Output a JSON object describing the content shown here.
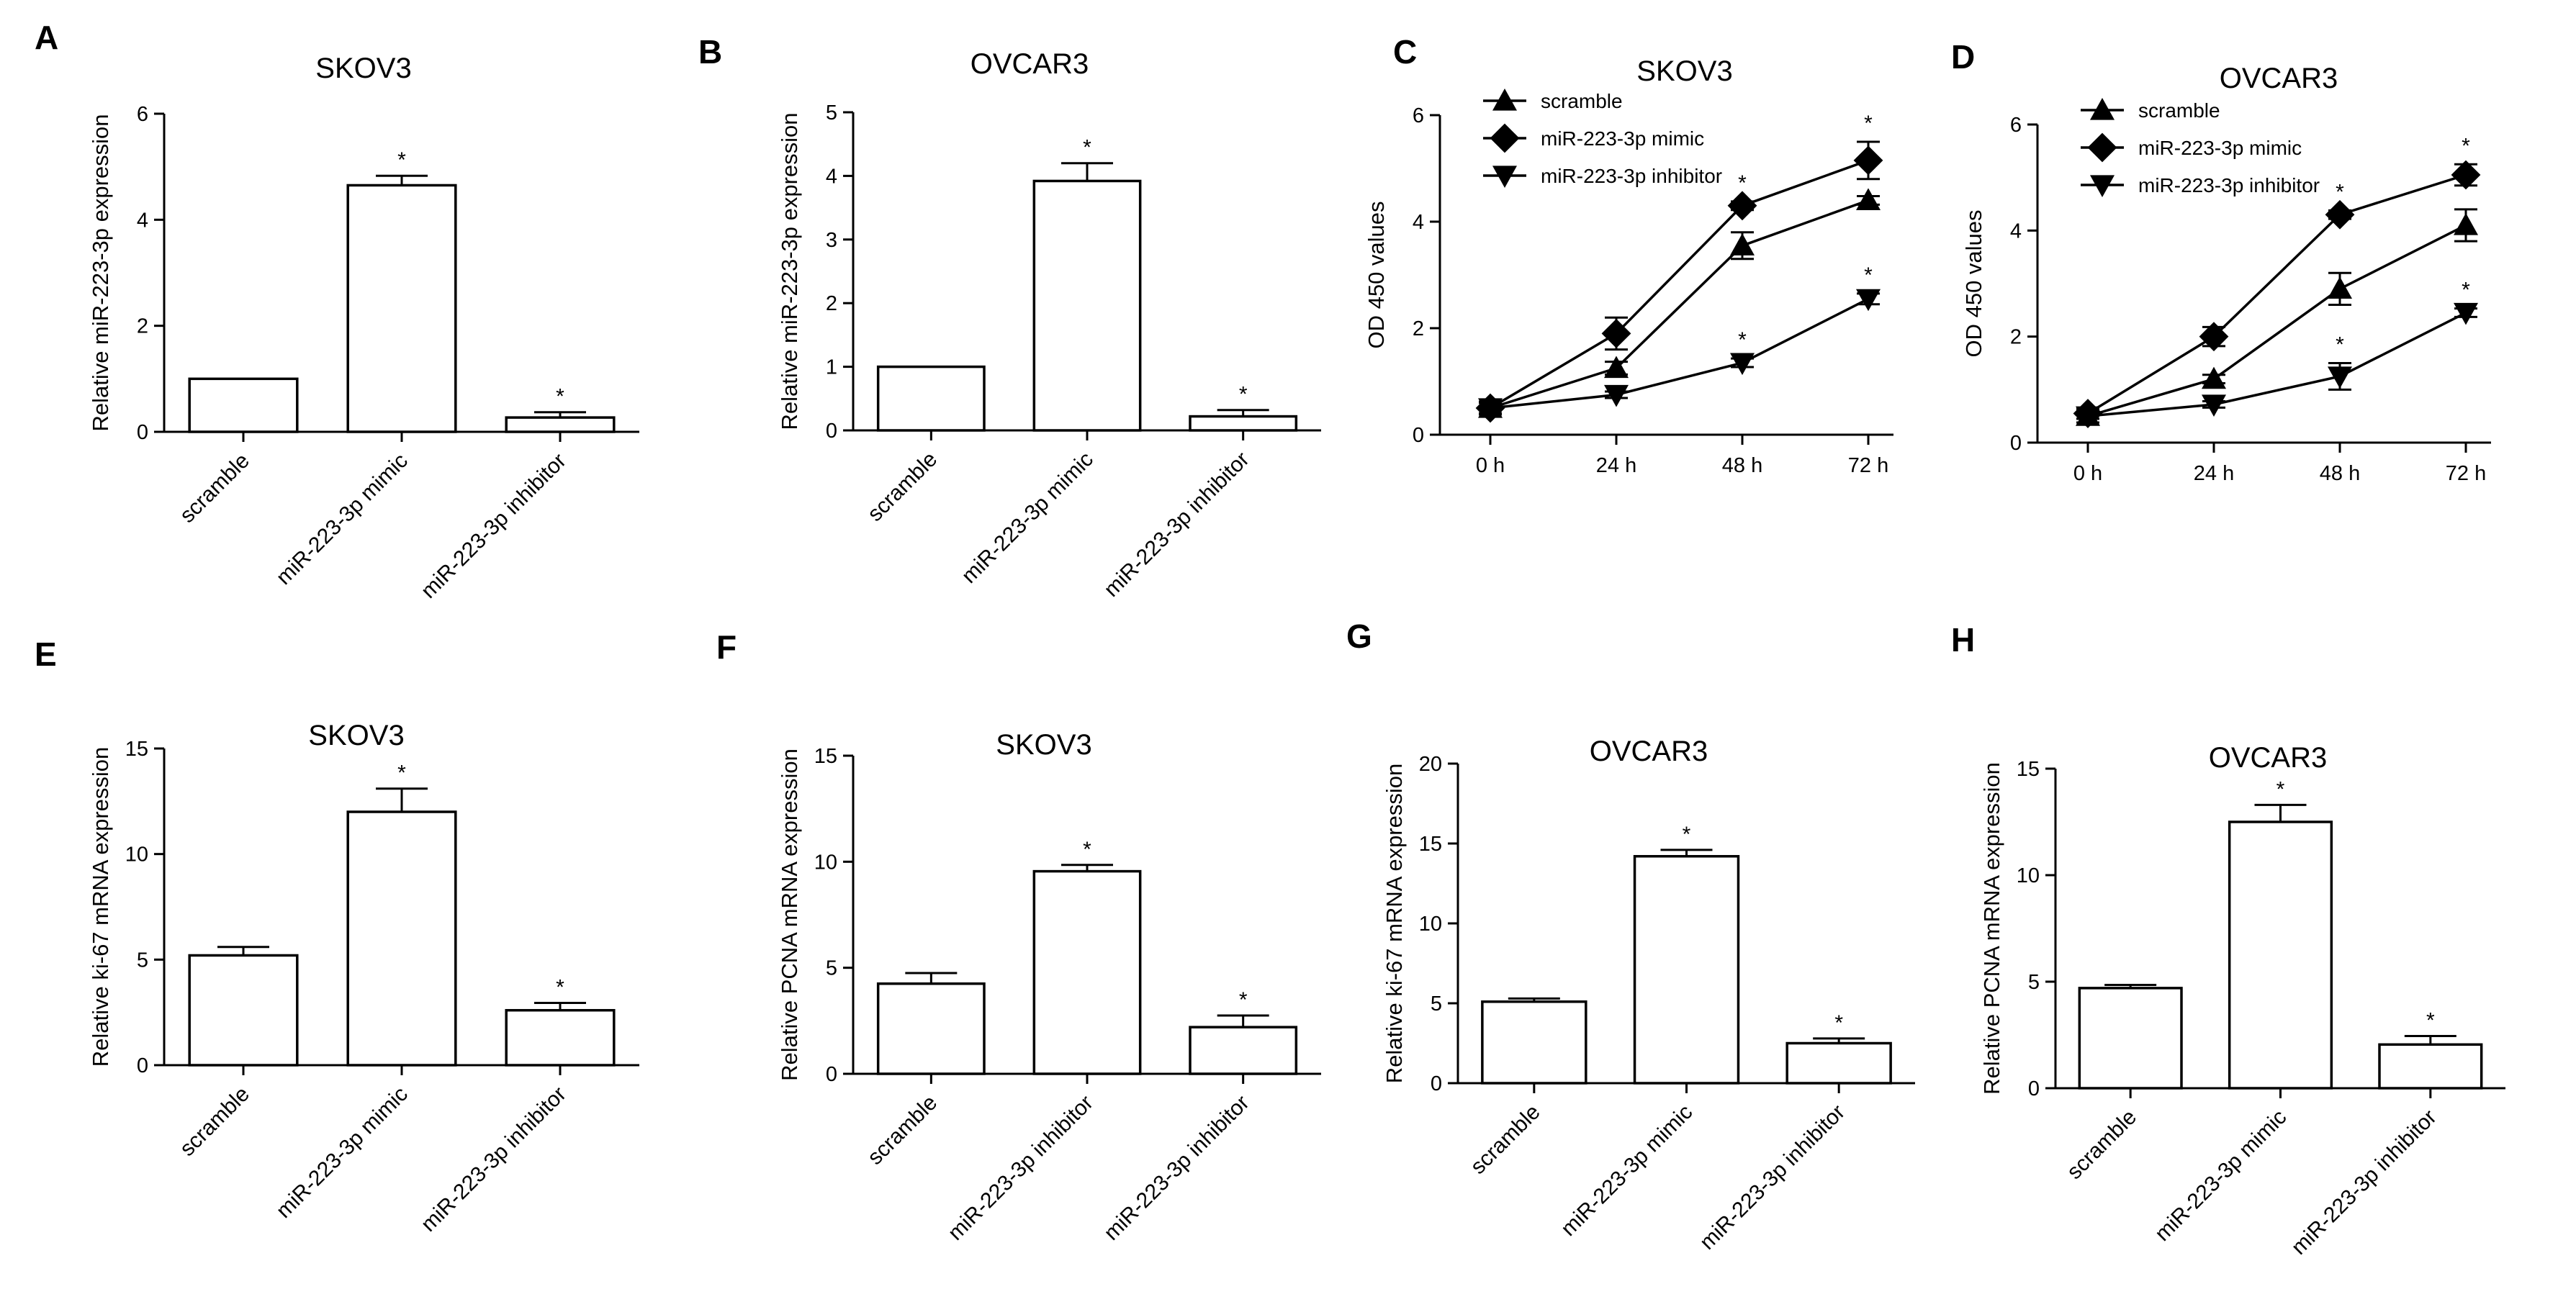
{
  "chart_data": [
    {
      "panel": "A",
      "type": "bar",
      "title": "SKOV3",
      "ylabel": "Relative miR-223-3p expression",
      "ylim": [
        0,
        6
      ],
      "yticks": [
        0,
        2,
        4,
        6
      ],
      "categories": [
        "scramble",
        "miR-223-3p mimic",
        "miR-223-3p inhibitor"
      ],
      "values": [
        1.0,
        4.65,
        0.27
      ],
      "errors": [
        0.0,
        0.18,
        0.1
      ],
      "significant": [
        false,
        true,
        true
      ],
      "star": "*"
    },
    {
      "panel": "B",
      "type": "bar",
      "title": "OVCAR3",
      "ylabel": "Relative miR-223-3p expression",
      "ylim": [
        0,
        5
      ],
      "yticks": [
        0,
        1,
        2,
        3,
        4,
        5
      ],
      "categories": [
        "scramble",
        "miR-223-3p mimic",
        "miR-223-3p inhibitor"
      ],
      "values": [
        1.0,
        3.92,
        0.22
      ],
      "errors": [
        0.0,
        0.28,
        0.1
      ],
      "significant": [
        false,
        true,
        true
      ],
      "star": "*"
    },
    {
      "panel": "C",
      "type": "line",
      "title": "SKOV3",
      "ylabel": "OD 450 values",
      "ylim": [
        0,
        6
      ],
      "yticks": [
        0,
        2,
        4,
        6
      ],
      "categories": [
        "0 h",
        "24 h",
        "48 h",
        "72 h"
      ],
      "series": [
        {
          "name": "scramble",
          "marker": "triangle-up",
          "values": [
            0.5,
            1.25,
            3.55,
            4.4
          ],
          "errors": [
            0.1,
            0.12,
            0.25,
            0.08
          ],
          "significant": [
            false,
            false,
            false,
            false
          ]
        },
        {
          "name": "miR-223-3p mimic",
          "marker": "diamond",
          "values": [
            0.5,
            1.9,
            4.3,
            5.15
          ],
          "errors": [
            0.12,
            0.3,
            0.08,
            0.35
          ],
          "significant": [
            false,
            false,
            true,
            true
          ]
        },
        {
          "name": "miR-223-3p inhibitor",
          "marker": "triangle-down",
          "values": [
            0.5,
            0.75,
            1.35,
            2.55
          ],
          "errors": [
            0.05,
            0.06,
            0.08,
            0.1
          ],
          "significant": [
            false,
            false,
            true,
            true
          ]
        }
      ],
      "star": "*"
    },
    {
      "panel": "D",
      "type": "line",
      "title": "OVCAR3",
      "ylabel": "OD 450 values",
      "ylim": [
        0,
        6
      ],
      "yticks": [
        0,
        2,
        4,
        6
      ],
      "categories": [
        "0 h",
        "24 h",
        "48 h",
        "72 h"
      ],
      "series": [
        {
          "name": "scramble",
          "marker": "triangle-up",
          "values": [
            0.5,
            1.2,
            2.9,
            4.1
          ],
          "errors": [
            0.12,
            0.08,
            0.3,
            0.3
          ],
          "significant": [
            false,
            false,
            false,
            false
          ]
        },
        {
          "name": "miR-223-3p mimic",
          "marker": "diamond",
          "values": [
            0.55,
            2.0,
            4.3,
            5.05
          ],
          "errors": [
            0.1,
            0.18,
            0.08,
            0.2
          ],
          "significant": [
            false,
            false,
            true,
            true
          ]
        },
        {
          "name": "miR-223-3p inhibitor",
          "marker": "triangle-down",
          "values": [
            0.5,
            0.72,
            1.25,
            2.45
          ],
          "errors": [
            0.05,
            0.06,
            0.25,
            0.08
          ],
          "significant": [
            false,
            false,
            true,
            true
          ]
        }
      ],
      "star": "*"
    },
    {
      "panel": "E",
      "type": "bar",
      "title": "SKOV3",
      "ylabel": "Relative ki-67 mRNA expression",
      "ylim": [
        0,
        15
      ],
      "yticks": [
        0,
        5,
        10,
        15
      ],
      "categories": [
        "scramble",
        "miR-223-3p mimic",
        "miR-223-3p inhibitor"
      ],
      "values": [
        5.2,
        12.0,
        2.6
      ],
      "errors": [
        0.4,
        1.1,
        0.35
      ],
      "significant": [
        false,
        true,
        true
      ],
      "star": "*"
    },
    {
      "panel": "F",
      "type": "bar",
      "title": "SKOV3",
      "ylabel": "Relative PCNA mRNA expression",
      "ylim": [
        0,
        15
      ],
      "yticks": [
        0,
        5,
        10,
        15
      ],
      "categories": [
        "scramble",
        "miR-223-3p inhibitor",
        "miR-223-3p inhibitor"
      ],
      "values": [
        4.25,
        9.55,
        2.2
      ],
      "errors": [
        0.5,
        0.3,
        0.55
      ],
      "significant": [
        false,
        true,
        true
      ],
      "star": "*"
    },
    {
      "panel": "G",
      "type": "bar",
      "title": "OVCAR3",
      "ylabel": "Relative ki-67 mRNA expression",
      "ylim": [
        0,
        20
      ],
      "yticks": [
        0,
        5,
        10,
        15,
        20
      ],
      "categories": [
        "scramble",
        "miR-223-3p mimic",
        "miR-223-3p inhibitor"
      ],
      "values": [
        5.1,
        14.2,
        2.5
      ],
      "errors": [
        0.2,
        0.4,
        0.3
      ],
      "significant": [
        false,
        true,
        true
      ],
      "star": "*"
    },
    {
      "panel": "H",
      "type": "bar",
      "title": "OVCAR3",
      "ylabel": "Relative PCNA mRNA expression",
      "ylim": [
        0,
        15
      ],
      "yticks": [
        0,
        5,
        10,
        15
      ],
      "categories": [
        "scramble",
        "miR-223-3p mimic",
        "miR-223-3p inhibitor"
      ],
      "values": [
        4.7,
        12.5,
        2.05
      ],
      "errors": [
        0.15,
        0.8,
        0.4
      ],
      "significant": [
        false,
        true,
        true
      ],
      "star": "*"
    }
  ]
}
